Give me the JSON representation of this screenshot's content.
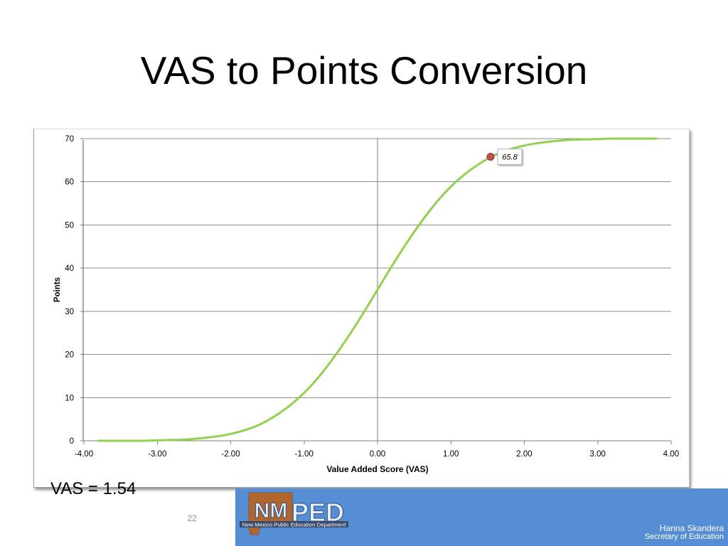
{
  "slide": {
    "title": "VAS to Points Conversion",
    "annotation": "VAS = 1.54",
    "page_number": "22"
  },
  "footer": {
    "banner_color": "#558ed5",
    "logo": {
      "mark": "NM",
      "wordmark": "PED",
      "tagline": "New Mexico Public Education Department",
      "state_color": "#b0662c"
    },
    "name": "Hanna Skandera",
    "role": "Secretary of Education"
  },
  "chart_data": {
    "type": "line",
    "xlabel": "Value Added Score (VAS)",
    "ylabel": "Points",
    "xlim": [
      -4,
      4
    ],
    "ylim": [
      0,
      70
    ],
    "y_axis_crosses_at": 0,
    "x_tick_labels": [
      "-4.00",
      "-3.00",
      "-2.00",
      "-1.00",
      "0.00",
      "1.00",
      "2.00",
      "3.00",
      "4.00"
    ],
    "y_tick_labels": [
      "0",
      "10",
      "20",
      "30",
      "40",
      "50",
      "60",
      "70"
    ],
    "grid": "horizontal major",
    "legend": "none",
    "series": [
      {
        "color": "#92d050",
        "x": [
          -3.8,
          -3.6,
          -3.4,
          -3.2,
          -3.0,
          -2.8,
          -2.6,
          -2.4,
          -2.2,
          -2.0,
          -1.8,
          -1.6,
          -1.4,
          -1.2,
          -1.0,
          -0.8,
          -0.6,
          -0.4,
          -0.2,
          0.0,
          0.2,
          0.4,
          0.6,
          0.8,
          1.0,
          1.2,
          1.4,
          1.6,
          1.8,
          2.0,
          2.2,
          2.4,
          2.6,
          2.8,
          3.0,
          3.2,
          3.4,
          3.6,
          3.8
        ],
        "y": [
          0.0,
          0.0,
          0.0,
          0.0,
          0.1,
          0.2,
          0.3,
          0.6,
          1.0,
          1.6,
          2.5,
          3.8,
          5.7,
          8.1,
          11.1,
          14.8,
          19.2,
          24.1,
          29.4,
          35.0,
          40.6,
          45.9,
          50.8,
          55.2,
          58.9,
          61.9,
          64.3,
          66.2,
          67.5,
          68.4,
          69.0,
          69.4,
          69.7,
          69.8,
          69.9,
          70.0,
          70.0,
          70.0,
          70.0
        ]
      }
    ],
    "highlight_point": {
      "x": 1.54,
      "y": 65.8,
      "label": "65.8",
      "color": "#c0504d"
    }
  }
}
